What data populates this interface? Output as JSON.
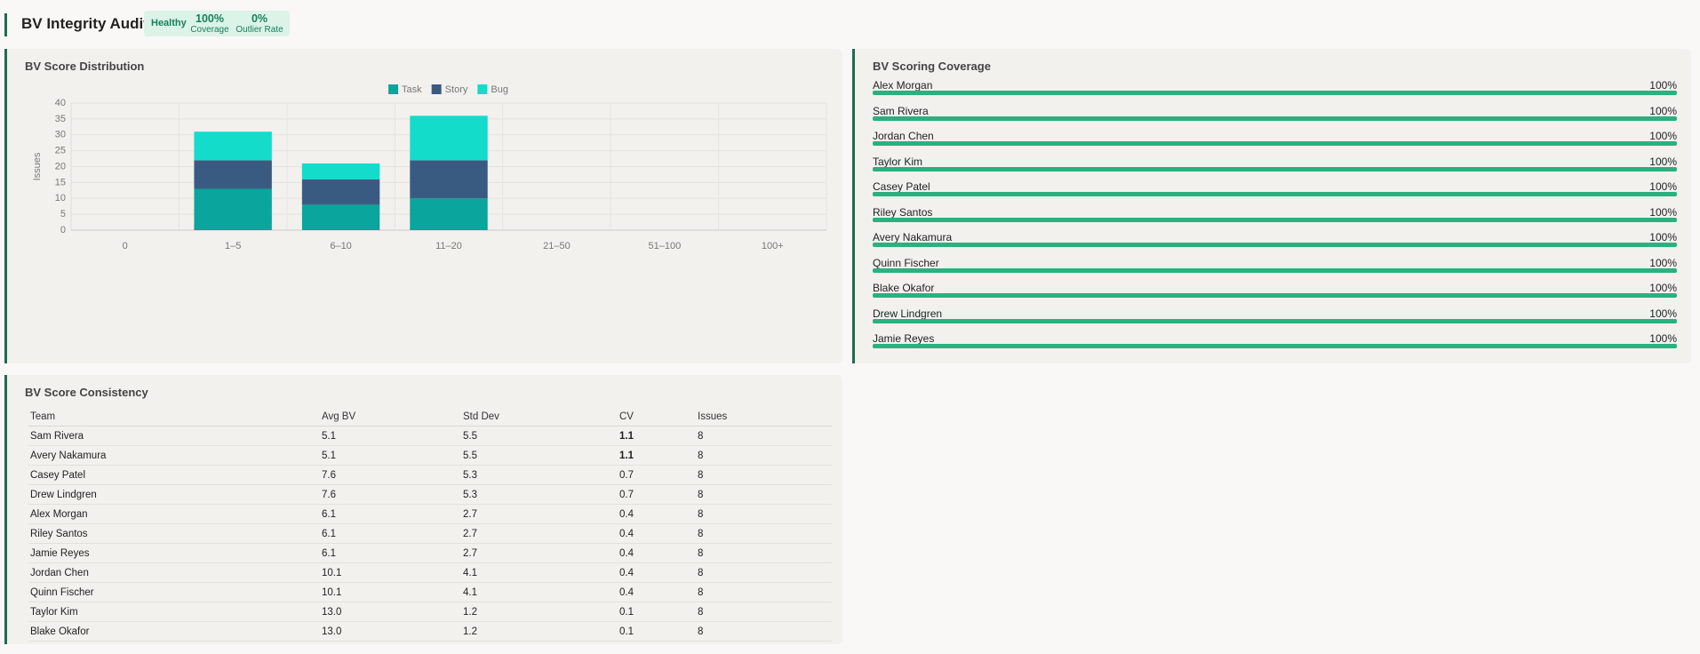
{
  "header": {
    "title": "BV Integrity Audit",
    "status": "Healthy",
    "stats": [
      {
        "value": "100%",
        "label": "Coverage"
      },
      {
        "value": "0%",
        "label": "Outlier Rate"
      }
    ]
  },
  "chart_data": {
    "type": "bar",
    "stacked": true,
    "title": "BV Score Distribution",
    "y_label": "Issues",
    "categories": [
      "0",
      "1–5",
      "6–10",
      "11–20",
      "21–50",
      "51–100",
      "100+"
    ],
    "series": [
      {
        "name": "Task",
        "color": "#0aa59c",
        "values": [
          0,
          13,
          8,
          10,
          0,
          0,
          0
        ]
      },
      {
        "name": "Story",
        "color": "#3a5b81",
        "values": [
          0,
          9,
          8,
          12,
          0,
          0,
          0
        ]
      },
      {
        "name": "Bug",
        "color": "#14dccb",
        "values": [
          0,
          9,
          5,
          14,
          0,
          0,
          0
        ]
      }
    ],
    "ylim": [
      0,
      40
    ],
    "yticks": [
      0,
      5,
      10,
      15,
      20,
      25,
      30,
      35,
      40
    ],
    "grid": true,
    "legend": "top"
  },
  "coverage": {
    "title": "BV Scoring Coverage",
    "color": "#2bb07f",
    "rows": [
      {
        "name": "Alex Morgan",
        "value": 100,
        "value_label": "100%"
      },
      {
        "name": "Sam Rivera",
        "value": 100,
        "value_label": "100%"
      },
      {
        "name": "Jordan Chen",
        "value": 100,
        "value_label": "100%"
      },
      {
        "name": "Taylor Kim",
        "value": 100,
        "value_label": "100%"
      },
      {
        "name": "Casey Patel",
        "value": 100,
        "value_label": "100%"
      },
      {
        "name": "Riley Santos",
        "value": 100,
        "value_label": "100%"
      },
      {
        "name": "Avery Nakamura",
        "value": 100,
        "value_label": "100%"
      },
      {
        "name": "Quinn Fischer",
        "value": 100,
        "value_label": "100%"
      },
      {
        "name": "Blake Okafor",
        "value": 100,
        "value_label": "100%"
      },
      {
        "name": "Drew Lindgren",
        "value": 100,
        "value_label": "100%"
      },
      {
        "name": "Jamie Reyes",
        "value": 100,
        "value_label": "100%"
      }
    ]
  },
  "consistency": {
    "title": "BV Score Consistency",
    "columns": [
      "Team",
      "Avg BV",
      "Std Dev",
      "CV",
      "Issues"
    ],
    "rows": [
      [
        "Sam Rivera",
        "5.1",
        "5.5",
        "1.1",
        "8"
      ],
      [
        "Avery Nakamura",
        "5.1",
        "5.5",
        "1.1",
        "8"
      ],
      [
        "Casey Patel",
        "7.6",
        "5.3",
        "0.7",
        "8"
      ],
      [
        "Drew Lindgren",
        "7.6",
        "5.3",
        "0.7",
        "8"
      ],
      [
        "Alex Morgan",
        "6.1",
        "2.7",
        "0.4",
        "8"
      ],
      [
        "Riley Santos",
        "6.1",
        "2.7",
        "0.4",
        "8"
      ],
      [
        "Jamie Reyes",
        "6.1",
        "2.7",
        "0.4",
        "8"
      ],
      [
        "Jordan Chen",
        "10.1",
        "4.1",
        "0.4",
        "8"
      ],
      [
        "Quinn Fischer",
        "10.1",
        "4.1",
        "0.4",
        "8"
      ],
      [
        "Taylor Kim",
        "13.0",
        "1.2",
        "0.1",
        "8"
      ],
      [
        "Blake Okafor",
        "13.0",
        "1.2",
        "0.1",
        "8"
      ]
    ]
  }
}
